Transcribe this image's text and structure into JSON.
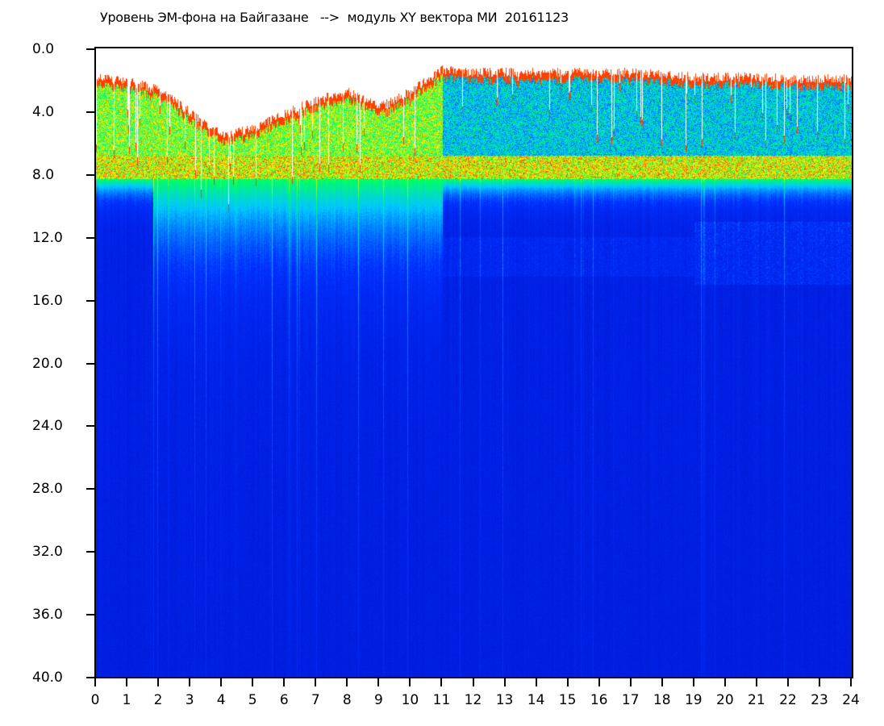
{
  "chart_data": {
    "type": "heatmap",
    "title": "Уровень ЭМ-фона на Байгазане   -->  модуль XY вектора МИ  20161123",
    "xlabel": "",
    "ylabel": "",
    "xlim": [
      0,
      24
    ],
    "ylim": [
      40,
      0
    ],
    "y_inverted": true,
    "x_ticks": [
      "0",
      "1",
      "2",
      "3",
      "4",
      "5",
      "6",
      "7",
      "8",
      "9",
      "10",
      "11",
      "12",
      "13",
      "14",
      "15",
      "16",
      "17",
      "18",
      "19",
      "20",
      "21",
      "22",
      "23",
      "24"
    ],
    "y_ticks": [
      "0.0",
      "4.0",
      "8.0",
      "12.0",
      "16.0",
      "20.0",
      "24.0",
      "28.0",
      "32.0",
      "36.0",
      "40.0"
    ],
    "colormap": [
      "#0010c8",
      "#0030ff",
      "#00c8ff",
      "#00ff60",
      "#ffff00",
      "#ff0000"
    ],
    "no_data_color": "#ffffff",
    "upper_edge_by_hour": [
      1.5,
      1.8,
      2.3,
      3.8,
      5.2,
      4.8,
      3.8,
      3.0,
      2.4,
      3.4,
      2.4,
      1.0,
      1.2,
      1.2,
      1.2,
      1.2,
      1.2,
      1.2,
      1.3,
      1.5,
      1.5,
      1.5,
      1.6,
      1.6
    ],
    "strong_band": [
      6.8,
      8.3
    ],
    "grid": false
  }
}
